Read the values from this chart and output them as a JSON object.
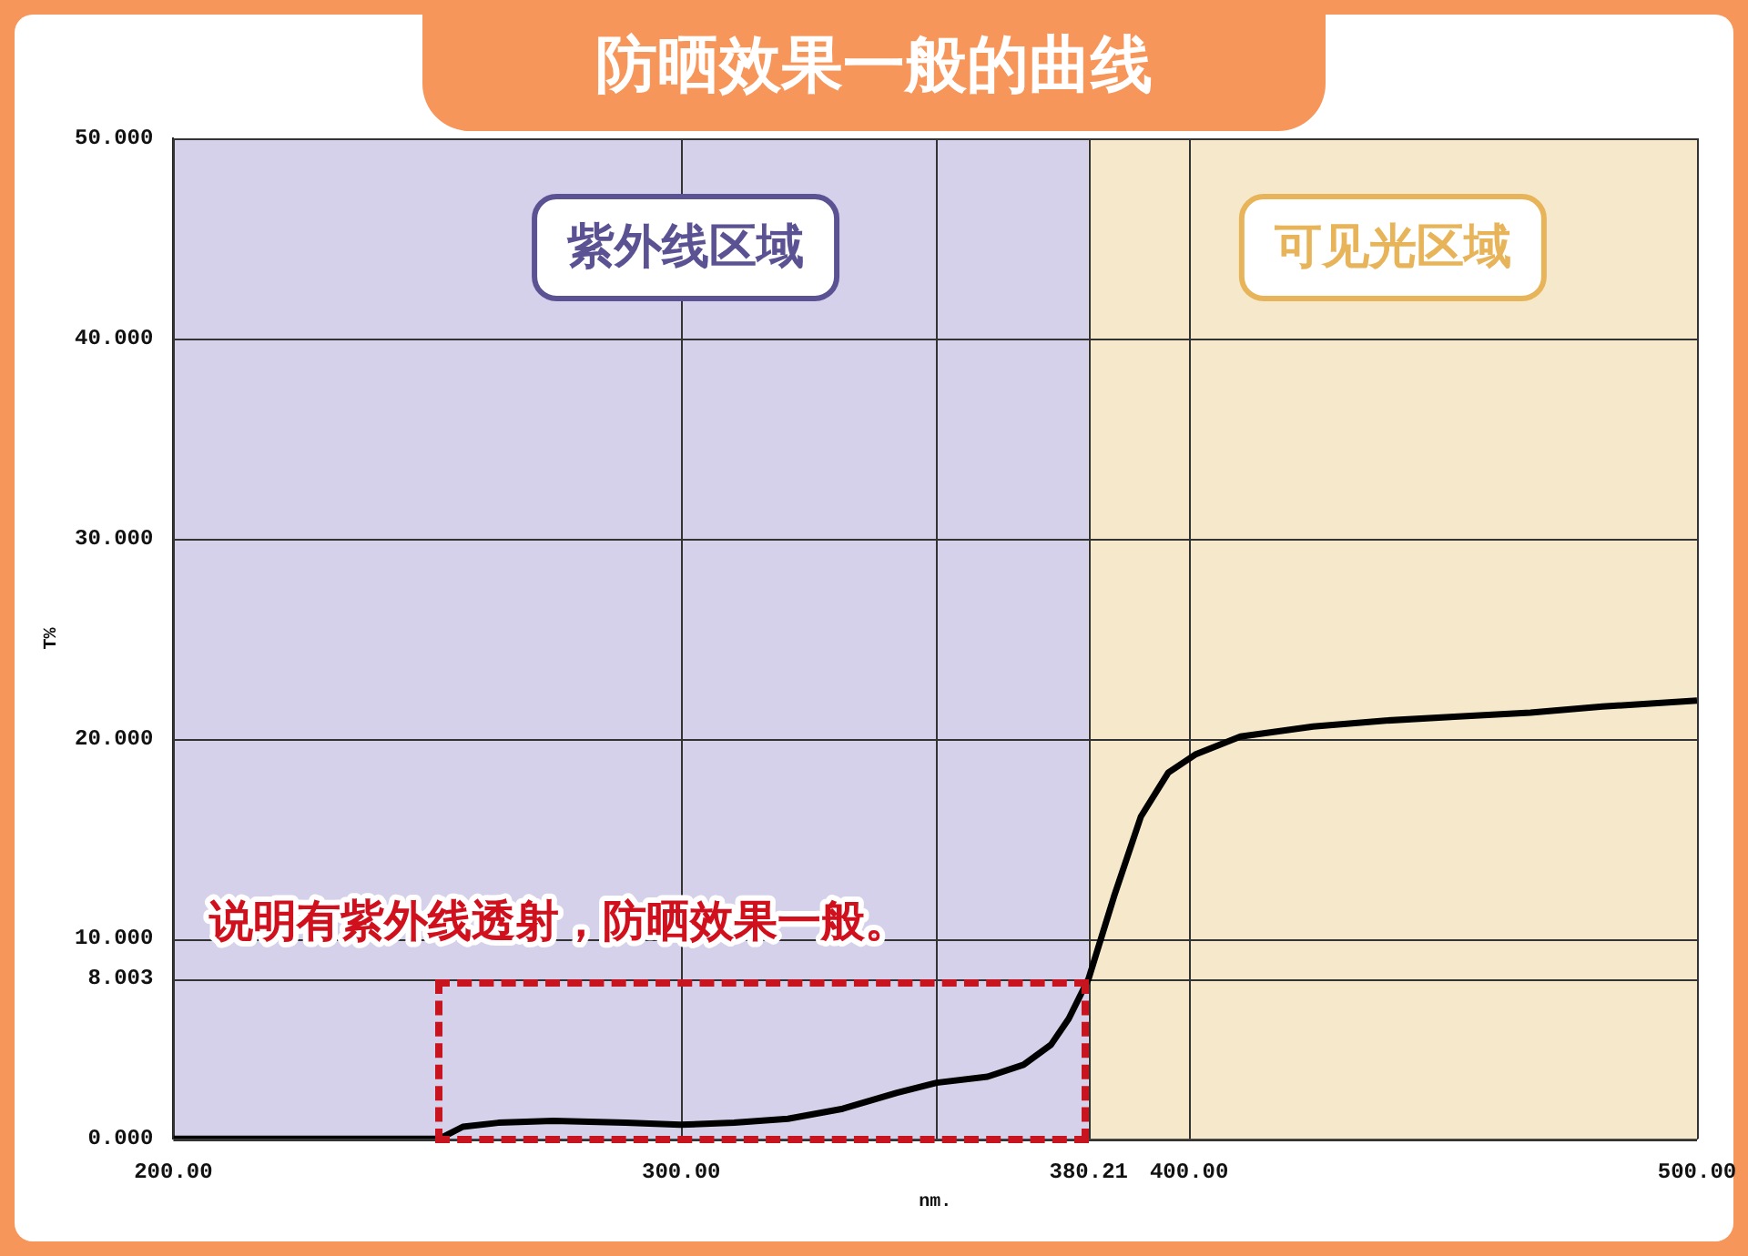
{
  "chart_data": {
    "type": "line",
    "title": "防晒效果一般的曲线",
    "xlabel": "nm.",
    "ylabel": "T%",
    "x": [
      200,
      252.4,
      257,
      264,
      274.8,
      289,
      299.8,
      310.4,
      321,
      331.8,
      342.5,
      350.3,
      360.3,
      367.4,
      372.8,
      376.3,
      380.21,
      385.2,
      390.5,
      395.9,
      401.2,
      410.1,
      424.4,
      438.7,
      453,
      467.2,
      481.4,
      500
    ],
    "series": [
      {
        "color": "#000000",
        "values": [
          0,
          0,
          0.6,
          0.8,
          0.9,
          0.8,
          0.7,
          0.8,
          1.0,
          1.5,
          2.3,
          2.8,
          3.1,
          3.7,
          4.7,
          6.0,
          8.003,
          12.1,
          16.1,
          18.3,
          19.2,
          20.1,
          20.6,
          20.9,
          21.1,
          21.3,
          21.6,
          21.9
        ]
      }
    ],
    "xlim": [
      200,
      500
    ],
    "ylim": [
      0,
      50
    ],
    "xticks": [
      {
        "value": 200,
        "label": "200.00"
      },
      {
        "value": 300,
        "label": "300.00"
      },
      {
        "value": 350,
        "label": null
      },
      380.21,
      {
        "value": 400,
        "label": "400.00"
      },
      {
        "value": 500,
        "label": "500.00"
      }
    ],
    "yticks": [
      {
        "value": 0,
        "label": "0.000"
      },
      8.003,
      {
        "value": 10,
        "label": "10.000"
      },
      {
        "value": 20,
        "label": "20.000"
      },
      {
        "value": 30,
        "label": "30.000"
      },
      {
        "value": 40,
        "label": "40.000"
      },
      {
        "value": 50,
        "label": "50.000"
      }
    ],
    "bands": [
      {
        "axis": "x",
        "from": 200,
        "to": 380.21,
        "label": "紫外线区域",
        "color": "#d6d1ea"
      },
      {
        "axis": "x",
        "from": 380.21,
        "to": 500,
        "label": "可见光区域",
        "color": "#f6e9cb"
      }
    ],
    "annotations": [
      "说明有紫外线透射，防晒效果一般。"
    ],
    "grid": true,
    "legend": false,
    "marker": "none",
    "line_style": "solid"
  }
}
